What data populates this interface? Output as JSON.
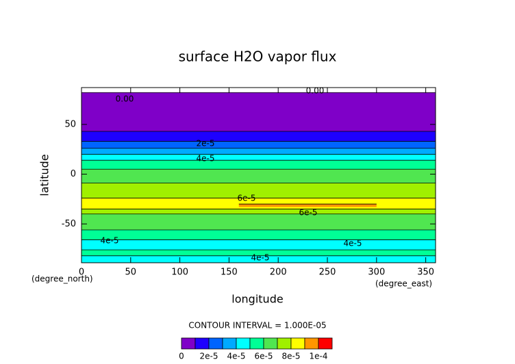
{
  "chart_data": {
    "type": "contour",
    "title": "surface H2O vapor flux",
    "xlabel": "longitude",
    "ylabel": "latitude",
    "xunit": "(degree_east)",
    "yunit": "(degree_north)",
    "xlim": [
      0,
      360
    ],
    "ylim": [
      -89,
      87
    ],
    "xticks": [
      0,
      50,
      100,
      150,
      200,
      250,
      300,
      350
    ],
    "yticks": [
      -50,
      0,
      50
    ],
    "contour_interval": "CONTOUR INTERVAL = 1.000E-05",
    "levels": [
      0,
      1e-05,
      2e-05,
      3e-05,
      4e-05,
      5e-05,
      6e-05,
      7e-05,
      8e-05,
      9e-05,
      0.0001
    ],
    "colors": [
      "#7f00c8",
      "#1e00ff",
      "#0064ff",
      "#00aaff",
      "#00ffff",
      "#00ff96",
      "#50e650",
      "#a0f000",
      "#ffff00",
      "#ff9600",
      "#ff0000"
    ],
    "colorbar_ticks": [
      0,
      {
        "value": 2e-05,
        "label": "2e-5"
      },
      {
        "value": 4e-05,
        "label": "4e-5"
      },
      {
        "value": 6e-05,
        "label": "6e-5"
      },
      {
        "value": 8e-05,
        "label": "8e-5"
      },
      {
        "value": 0.0001,
        "label": "1e-4"
      }
    ],
    "bands": [
      {
        "lat": [
          43,
          82
        ],
        "level": 0
      },
      {
        "lat": [
          33,
          43
        ],
        "level": 1e-05
      },
      {
        "lat": [
          26,
          33
        ],
        "level": 2e-05
      },
      {
        "lat": [
          20,
          26
        ],
        "level": 3e-05
      },
      {
        "lat": [
          14,
          20
        ],
        "level": 4e-05
      },
      {
        "lat": [
          5,
          14
        ],
        "level": 5e-05
      },
      {
        "lat": [
          -9,
          5
        ],
        "level": 6e-05
      },
      {
        "lat": [
          -24,
          -9
        ],
        "level": 7e-05
      },
      {
        "lat": [
          -35,
          -24
        ],
        "level": 8e-05
      },
      {
        "lat": [
          -33,
          -30
        ],
        "level": 9e-05
      },
      {
        "lat": [
          -40,
          -35
        ],
        "level": 7e-05
      },
      {
        "lat": [
          -56,
          -40
        ],
        "level": 6e-05
      },
      {
        "lat": [
          -66,
          -56
        ],
        "level": 5e-05
      },
      {
        "lat": [
          -76,
          -66
        ],
        "level": 4e-05
      },
      {
        "lat": [
          -82,
          -76
        ],
        "level": 5e-05
      },
      {
        "lat": [
          -89,
          -82
        ],
        "level": 4e-05
      }
    ],
    "contour_labels": [
      "0.00",
      "0.00",
      "2e-5",
      "4e-5",
      "6e-5",
      "6e-5",
      "4e-5",
      "4e-5",
      "4e-5"
    ]
  }
}
